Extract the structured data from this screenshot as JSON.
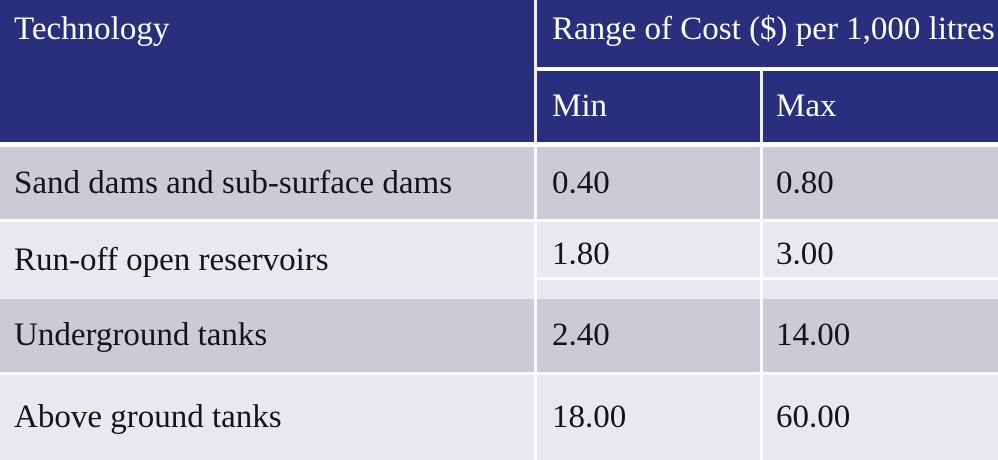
{
  "table": {
    "header": {
      "technology": "Technology",
      "cost_range": "Range of Cost ($) per 1,000 litres",
      "min": "Min",
      "max": "Max"
    },
    "rows": [
      {
        "technology": "Sand dams and sub-surface dams",
        "min": "0.40",
        "max": "0.80"
      },
      {
        "technology": "Run-off open reservoirs",
        "min": "1.80",
        "max": "3.00"
      },
      {
        "technology": "Underground tanks",
        "min": "2.40",
        "max": "14.00"
      },
      {
        "technology": "Above ground tanks",
        "min": "18.00",
        "max": "60.00"
      }
    ],
    "colors": {
      "header_bg": "#292e7d",
      "row_dark_bg": "#cacbd6",
      "row_light_bg": "#e8e8ee",
      "header_text": "#fdfdfd",
      "body_text": "#141414",
      "grid_line": "#ffffff"
    }
  }
}
